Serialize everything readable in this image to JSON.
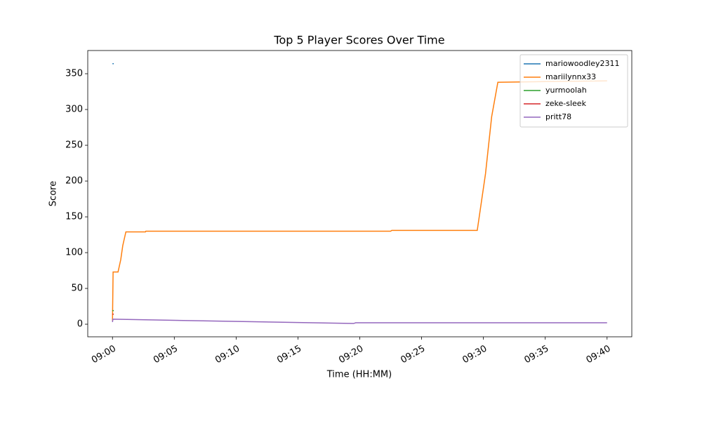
{
  "chart_data": {
    "type": "line",
    "title": "Top 5 Player Scores Over Time",
    "x_label": "Time (HH:MM)",
    "y_label": "Score",
    "xlim": [
      "08:58",
      "09:42"
    ],
    "xticks": [
      "09:00",
      "09:05",
      "09:10",
      "09:15",
      "09:20",
      "09:25",
      "09:30",
      "09:35",
      "09:40"
    ],
    "ylim": [
      -17.6,
      382.4
    ],
    "yticks": [
      0,
      50,
      100,
      150,
      200,
      250,
      300,
      350
    ],
    "legend": "upper right",
    "series": [
      {
        "name": "mariowoodley2311",
        "color": "#1f77b4",
        "x": [
          "09:00:00",
          "09:00:06"
        ],
        "values": [
          364,
          364
        ]
      },
      {
        "name": "mariilynnx33",
        "color": "#ff7f0e",
        "x": [
          "09:00:00",
          "09:00:03",
          "09:00:27",
          "09:00:40",
          "09:00:50",
          "09:01:05",
          "09:02:40",
          "09:02:42",
          "09:22:30",
          "09:22:35",
          "09:29:30",
          "09:30:10",
          "09:30:40",
          "09:31:10",
          "09:35:00",
          "09:40:00"
        ],
        "values": [
          5,
          73,
          73,
          90,
          110,
          129,
          129,
          130,
          130,
          131,
          131,
          210,
          290,
          338,
          339,
          340
        ]
      },
      {
        "name": "yurmoolah",
        "color": "#2ca02c",
        "x": [
          "09:00:00",
          "09:00:06"
        ],
        "values": [
          19,
          19
        ]
      },
      {
        "name": "zeke-sleek",
        "color": "#d62728",
        "x": [
          "09:00:00",
          "09:00:06"
        ],
        "values": [
          14,
          14
        ]
      },
      {
        "name": "pritt78",
        "color": "#9467bd",
        "x": [
          "09:00:00",
          "09:00:02",
          "09:19:30",
          "09:19:40",
          "09:40:00"
        ],
        "values": [
          3,
          7,
          1,
          2,
          2
        ]
      }
    ]
  }
}
